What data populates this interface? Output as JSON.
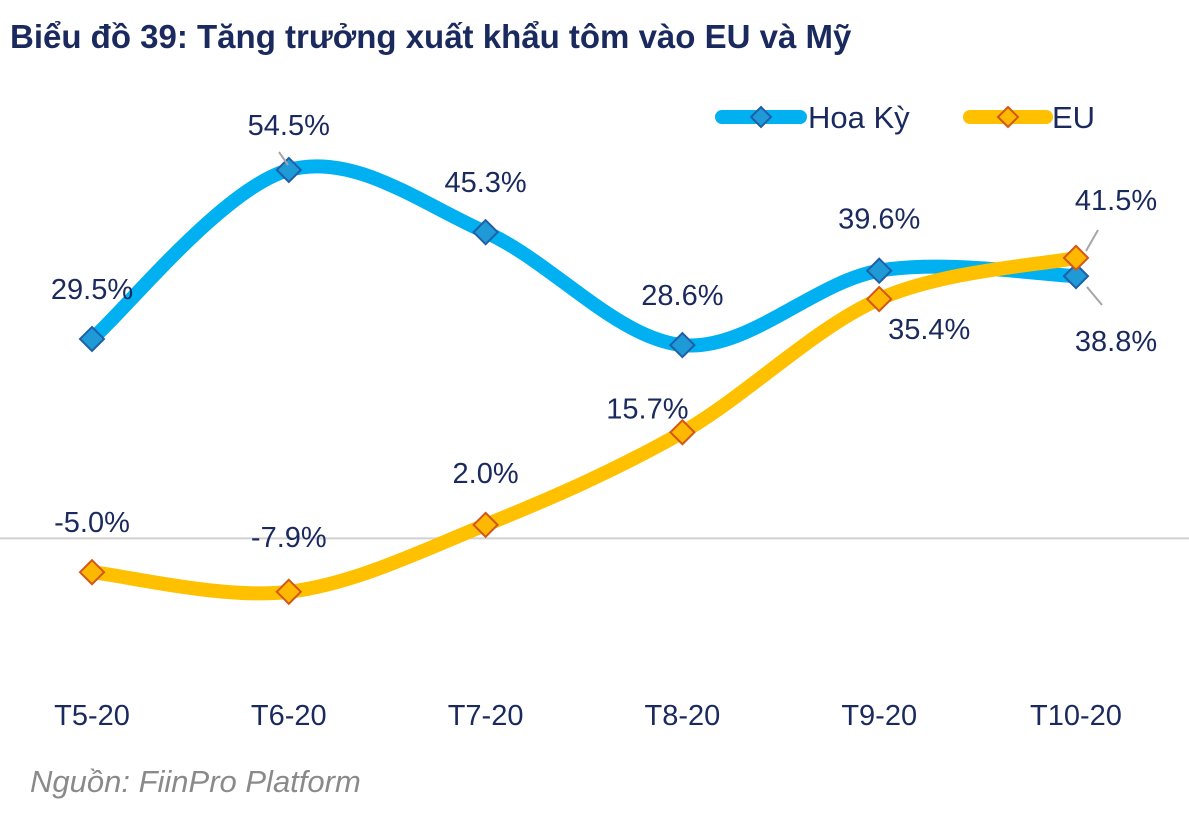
{
  "title": "Biểu đồ 39: Tăng trưởng xuất khẩu tôm vào EU và Mỹ",
  "source": "Nguồn: FiinPro Platform",
  "chart_data": {
    "type": "line",
    "title": "Biểu đồ 39: Tăng trưởng xuất khẩu tôm vào EU và Mỹ",
    "categories": [
      "T5-20",
      "T6-20",
      "T7-20",
      "T8-20",
      "T9-20",
      "T10-20"
    ],
    "series": [
      {
        "name": "Hoa Kỳ",
        "values": [
          29.5,
          54.5,
          45.3,
          28.6,
          39.6,
          38.8
        ],
        "labels": [
          "29.5%",
          "54.5%",
          "45.3%",
          "28.6%",
          "39.6%",
          "38.8%"
        ],
        "color": "#00B0F0",
        "marker_color": "#1E9BD7",
        "marker_border": "#1F5FA8"
      },
      {
        "name": "EU",
        "values": [
          -5.0,
          -7.9,
          2.0,
          15.7,
          35.4,
          41.5
        ],
        "labels": [
          "-5.0%",
          "-7.9%",
          "2.0%",
          "15.7%",
          "35.4%",
          "41.5%"
        ],
        "color": "#FFC000",
        "marker_color": "#FFB800",
        "marker_border": "#D2571B"
      }
    ],
    "unit": "%",
    "smoothed": true,
    "ylim": [
      -20,
      60
    ],
    "y_axis_visible": false,
    "zero_line": true,
    "grid": false,
    "legend": "top-right"
  }
}
